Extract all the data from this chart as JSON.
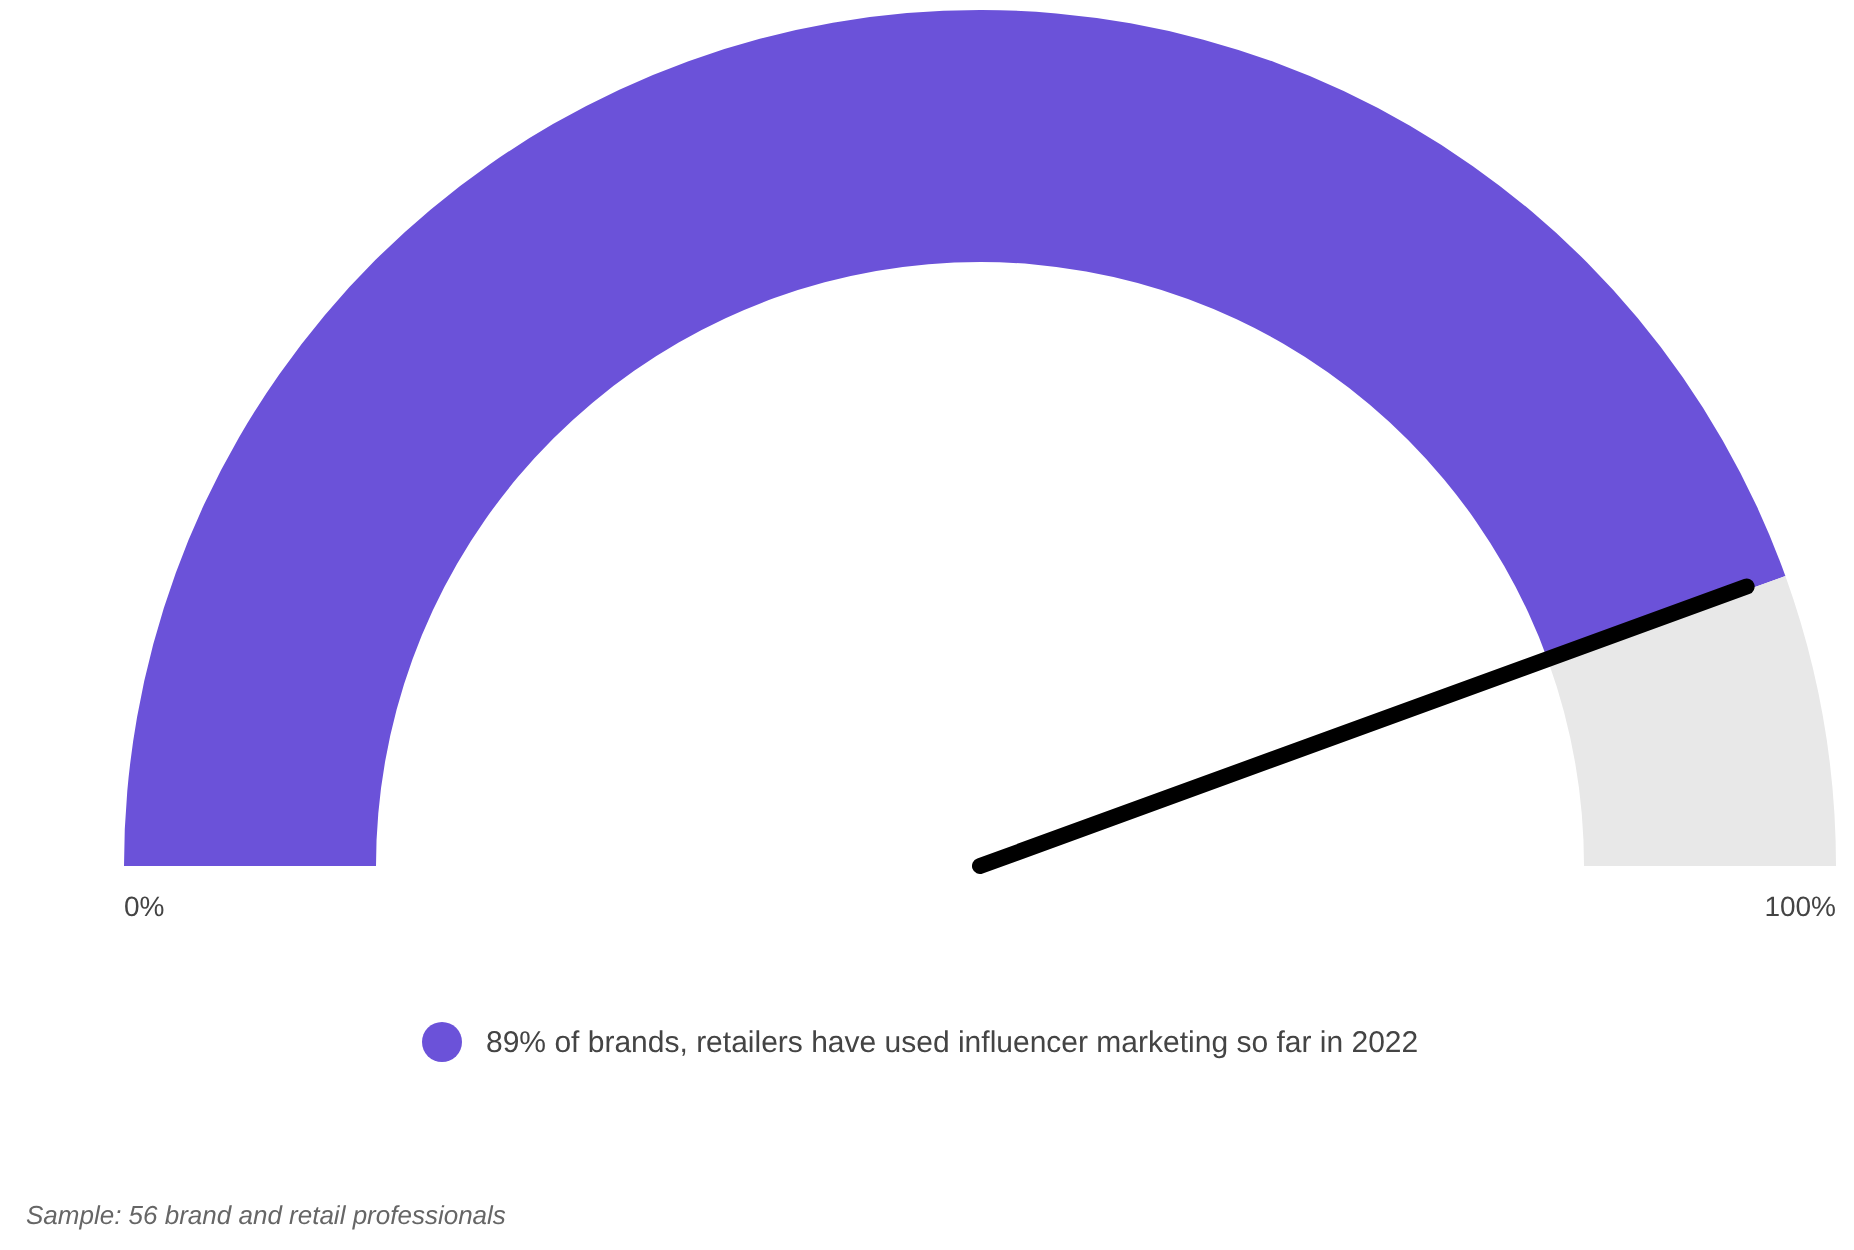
{
  "chart_data": {
    "type": "donut",
    "categories": [
      "89% of brands, retailers have used influencer marketing so far in 2022",
      null
    ],
    "values": [
      89,
      11
    ],
    "colors": [
      "#6b52d9",
      "#e8e8e8"
    ],
    "needle": "89% of brands, retailers have used influencer marketing so far in 2022",
    "legend": "bottom",
    "annotations": [
      "0%",
      "100%",
      "Sample: 56 brand and retail professionals"
    ]
  }
}
